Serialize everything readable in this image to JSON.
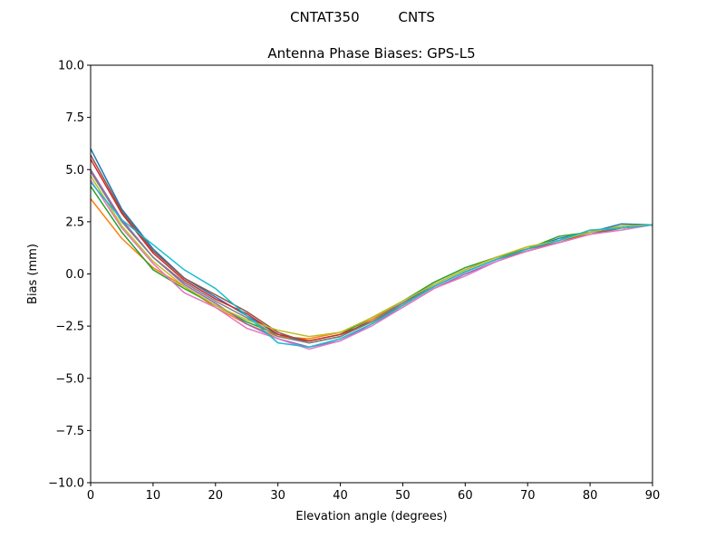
{
  "chart_data": {
    "type": "line",
    "suptitle": "CNTAT350         CNTS",
    "title": "Antenna Phase Biases: GPS-L5",
    "xlabel": "Elevation angle (degrees)",
    "ylabel": "Bias (mm)",
    "xlim": [
      0,
      90
    ],
    "ylim": [
      -10,
      10
    ],
    "xticks": [
      0,
      10,
      20,
      30,
      40,
      50,
      60,
      70,
      80,
      90
    ],
    "xtick_labels": [
      "0",
      "10",
      "20",
      "30",
      "40",
      "50",
      "60",
      "70",
      "80",
      "90"
    ],
    "yticks": [
      -10,
      -7.5,
      -5,
      -2.5,
      0,
      2.5,
      5,
      7.5,
      10
    ],
    "ytick_labels": [
      "−10.0",
      "−7.5",
      "−5.0",
      "−2.5",
      "0.0",
      "2.5",
      "5.0",
      "7.5",
      "10.0"
    ],
    "grid": false,
    "x": [
      0,
      5,
      10,
      15,
      20,
      25,
      30,
      35,
      40,
      45,
      50,
      55,
      60,
      65,
      70,
      75,
      80,
      85,
      90
    ],
    "series": [
      {
        "color": "#1f77b4",
        "values": [
          6.0,
          3.1,
          1.2,
          -0.2,
          -1.1,
          -2.0,
          -2.9,
          -3.3,
          -3.0,
          -2.2,
          -1.4,
          -0.5,
          0.2,
          0.8,
          1.2,
          1.7,
          2.0,
          2.4,
          2.35
        ]
      },
      {
        "color": "#ff7f0e",
        "values": [
          3.6,
          1.7,
          0.3,
          -0.6,
          -1.6,
          -2.4,
          -3.0,
          -3.1,
          -2.8,
          -2.2,
          -1.3,
          -0.5,
          0.2,
          0.8,
          1.3,
          1.6,
          2.1,
          2.2,
          2.35
        ]
      },
      {
        "color": "#2ca02c",
        "values": [
          4.2,
          2.0,
          0.2,
          -0.7,
          -1.5,
          -2.3,
          -2.9,
          -3.2,
          -2.9,
          -2.1,
          -1.3,
          -0.4,
          0.3,
          0.8,
          1.2,
          1.8,
          2.0,
          2.3,
          2.35
        ]
      },
      {
        "color": "#d62728",
        "values": [
          5.5,
          2.9,
          1.0,
          -0.3,
          -1.2,
          -1.9,
          -2.9,
          -3.2,
          -2.9,
          -2.3,
          -1.5,
          -0.6,
          0.1,
          0.7,
          1.2,
          1.5,
          2.0,
          2.2,
          2.35
        ]
      },
      {
        "color": "#9467bd",
        "values": [
          5.0,
          2.6,
          0.8,
          -0.5,
          -1.4,
          -2.4,
          -3.1,
          -3.5,
          -3.2,
          -2.4,
          -1.6,
          -0.7,
          0.0,
          0.6,
          1.1,
          1.5,
          1.9,
          2.2,
          2.35
        ]
      },
      {
        "color": "#8c564b",
        "values": [
          5.7,
          3.0,
          1.1,
          -0.2,
          -1.0,
          -1.8,
          -2.8,
          -3.3,
          -3.0,
          -2.3,
          -1.5,
          -0.6,
          0.1,
          0.7,
          1.1,
          1.5,
          1.9,
          2.2,
          2.35
        ]
      },
      {
        "color": "#e377c2",
        "values": [
          4.5,
          2.2,
          0.5,
          -0.9,
          -1.6,
          -2.6,
          -3.1,
          -3.6,
          -3.2,
          -2.5,
          -1.6,
          -0.7,
          -0.1,
          0.6,
          1.1,
          1.5,
          1.9,
          2.1,
          2.35
        ]
      },
      {
        "color": "#7f7f7f",
        "values": [
          4.9,
          2.5,
          0.8,
          -0.4,
          -1.3,
          -2.1,
          -3.0,
          -3.3,
          -3.0,
          -2.3,
          -1.4,
          -0.6,
          0.1,
          0.7,
          1.2,
          1.6,
          2.0,
          2.2,
          2.35
        ]
      },
      {
        "color": "#bcbd22",
        "values": [
          4.7,
          2.3,
          0.6,
          -0.6,
          -1.5,
          -2.2,
          -2.7,
          -3.0,
          -2.8,
          -2.1,
          -1.3,
          -0.5,
          0.2,
          0.8,
          1.3,
          1.6,
          2.0,
          2.3,
          2.35
        ]
      },
      {
        "color": "#17becf",
        "values": [
          4.4,
          2.6,
          1.4,
          0.2,
          -0.7,
          -2.0,
          -3.3,
          -3.5,
          -3.1,
          -2.4,
          -1.5,
          -0.6,
          0.1,
          0.7,
          1.2,
          1.6,
          2.1,
          2.2,
          2.35
        ]
      }
    ]
  }
}
